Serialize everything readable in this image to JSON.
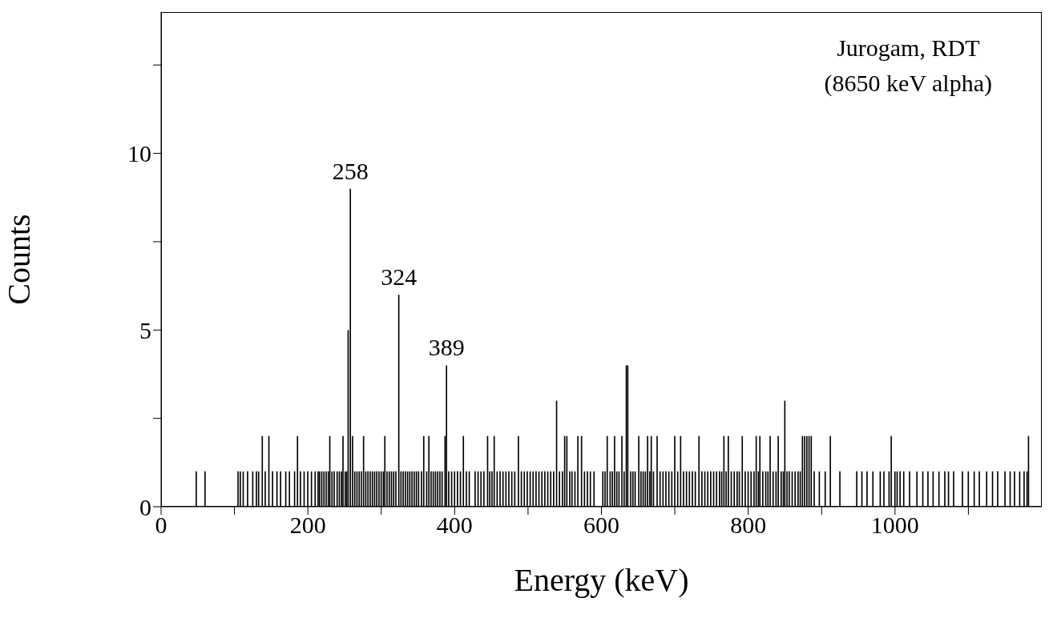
{
  "chart_data": {
    "type": "bar",
    "xlabel": "Energy (keV)",
    "ylabel": "Counts",
    "color": "#000000",
    "x": [
      48,
      60,
      105,
      108,
      112,
      118,
      125,
      130,
      133,
      138,
      142,
      147,
      152,
      158,
      163,
      170,
      175,
      182,
      186,
      190,
      195,
      200,
      205,
      210,
      214,
      216,
      219,
      222,
      225,
      228,
      230,
      233,
      236,
      240,
      243,
      246,
      248,
      251,
      253,
      255,
      258,
      261,
      264,
      267,
      270,
      273,
      276,
      279,
      282,
      285,
      288,
      291,
      294,
      297,
      300,
      303,
      305,
      308,
      311,
      314,
      317,
      320,
      324,
      327,
      330,
      333,
      336,
      339,
      342,
      345,
      348,
      351,
      355,
      358,
      362,
      365,
      368,
      371,
      374,
      377,
      380,
      383,
      387,
      389,
      392,
      396,
      400,
      404,
      408,
      412,
      416,
      420,
      428,
      432,
      436,
      440,
      445,
      448,
      451,
      454,
      458,
      462,
      466,
      470,
      474,
      478,
      482,
      487,
      491,
      495,
      499,
      503,
      507,
      511,
      515,
      519,
      523,
      527,
      531,
      535,
      539,
      543,
      547,
      550,
      553,
      557,
      560,
      564,
      568,
      573,
      577,
      581,
      585,
      590,
      602,
      605,
      608,
      612,
      615,
      618,
      621,
      624,
      628,
      631,
      634,
      636,
      640,
      643,
      646,
      651,
      654,
      657,
      660,
      663,
      666,
      668,
      671,
      676,
      680,
      684,
      688,
      692,
      696,
      700,
      704,
      708,
      712,
      716,
      720,
      724,
      728,
      733,
      737,
      741,
      745,
      749,
      753,
      757,
      761,
      764,
      767,
      770,
      773,
      777,
      781,
      785,
      788,
      792,
      796,
      800,
      804,
      808,
      811,
      814,
      816,
      820,
      824,
      827,
      830,
      834,
      838,
      841,
      845,
      848,
      850,
      853,
      856,
      860,
      864,
      868,
      871,
      874,
      877,
      880,
      883,
      886,
      890,
      897,
      905,
      912,
      925,
      948,
      955,
      962,
      970,
      980,
      985,
      992,
      995,
      1000,
      1003,
      1007,
      1012,
      1020,
      1030,
      1038,
      1045,
      1052,
      1060,
      1068,
      1073,
      1080,
      1092,
      1100,
      1108,
      1115,
      1125,
      1133,
      1140,
      1150,
      1157,
      1163,
      1170,
      1176,
      1180,
      1182
    ],
    "values": [
      1,
      1,
      1,
      1,
      1,
      1,
      1,
      1,
      1,
      2,
      1,
      2,
      1,
      1,
      1,
      1,
      1,
      1,
      2,
      1,
      1,
      1,
      1,
      1,
      1,
      1,
      1,
      1,
      1,
      1,
      2,
      1,
      1,
      1,
      1,
      1,
      2,
      1,
      1,
      5,
      9,
      2,
      1,
      1,
      1,
      1,
      2,
      1,
      1,
      1,
      1,
      1,
      1,
      1,
      1,
      1,
      2,
      1,
      1,
      1,
      1,
      1,
      6,
      1,
      1,
      1,
      1,
      1,
      1,
      1,
      1,
      1,
      1,
      2,
      1,
      2,
      1,
      1,
      1,
      1,
      1,
      1,
      2,
      4,
      1,
      1,
      1,
      1,
      1,
      2,
      1,
      1,
      1,
      1,
      1,
      1,
      2,
      1,
      1,
      2,
      1,
      1,
      1,
      1,
      1,
      1,
      1,
      2,
      1,
      1,
      1,
      1,
      1,
      1,
      1,
      1,
      1,
      1,
      1,
      1,
      3,
      1,
      1,
      2,
      2,
      1,
      1,
      1,
      2,
      2,
      1,
      1,
      1,
      1,
      1,
      1,
      2,
      1,
      1,
      2,
      1,
      1,
      2,
      1,
      4,
      4,
      1,
      1,
      1,
      2,
      1,
      1,
      1,
      2,
      1,
      2,
      1,
      2,
      1,
      1,
      1,
      1,
      1,
      2,
      1,
      2,
      1,
      1,
      1,
      1,
      1,
      2,
      1,
      1,
      1,
      1,
      1,
      1,
      1,
      1,
      2,
      1,
      2,
      1,
      1,
      1,
      1,
      2,
      1,
      1,
      1,
      1,
      2,
      1,
      2,
      1,
      1,
      1,
      2,
      1,
      1,
      2,
      1,
      1,
      3,
      1,
      1,
      1,
      1,
      1,
      1,
      2,
      2,
      2,
      2,
      2,
      1,
      1,
      1,
      2,
      1,
      1,
      1,
      1,
      1,
      1,
      1,
      1,
      2,
      1,
      1,
      1,
      1,
      1,
      1,
      1,
      1,
      1,
      1,
      1,
      1,
      1,
      1,
      1,
      1,
      1,
      1,
      1,
      1,
      1,
      1,
      1,
      1,
      1,
      1,
      2
    ],
    "xlim": [
      0,
      1200
    ],
    "xticks": [
      0,
      {
        "value": 100,
        "label": null
      },
      200,
      {
        "value": 300,
        "label": null
      },
      400,
      {
        "value": 500,
        "label": null
      },
      600,
      {
        "value": 700,
        "label": null
      },
      800,
      {
        "value": 900,
        "label": null
      },
      1000,
      {
        "value": 1100,
        "label": null
      }
    ],
    "ylim": [
      0,
      14
    ],
    "yticks": [
      0,
      {
        "value": 2.5,
        "label": null
      },
      5,
      {
        "value": 7.5,
        "label": null
      },
      10,
      {
        "value": 12.5,
        "label": null
      }
    ],
    "annotations": [
      "Jurogam, RDT",
      "(8650 keV alpha)",
      {
        "text": "258",
        "x": 258,
        "y": 9
      },
      {
        "text": "324",
        "x": 324,
        "y": 6
      },
      {
        "text": "389",
        "x": 389,
        "y": 4
      }
    ]
  }
}
